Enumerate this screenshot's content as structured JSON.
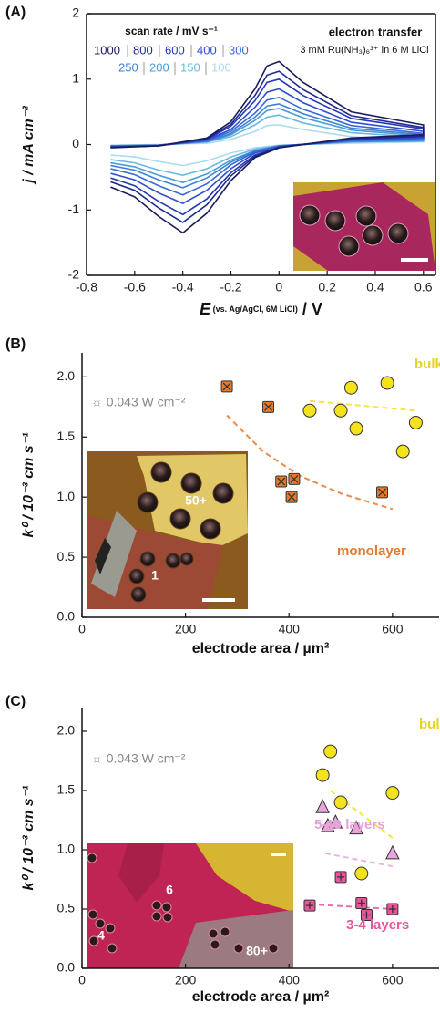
{
  "chart_data": [
    {
      "type": "line",
      "panel": "(A)",
      "ylabel": "j / mA cm⁻²",
      "xlabel": {
        "symbol": "E",
        "ref": " (vs. Ag/AgCl, 6M LiCl)",
        "unit": " / V"
      },
      "legend_title": "scan rate / mV s⁻¹",
      "title": "electron  transfer",
      "subtitle": "3 mM Ru(NH₃)₆³⁺ in 6 M LiCl",
      "frame": true,
      "x": [
        -0.7,
        -0.5,
        -0.3,
        -0.2,
        -0.1,
        -0.05,
        0,
        0.1,
        0.3,
        0.6,
        0.6,
        0.3,
        0,
        -0.1,
        -0.2,
        -0.3,
        -0.4,
        -0.5,
        -0.6,
        -0.7
      ],
      "series": [
        {
          "name": "1000",
          "color": "#1b1b5a",
          "values": [
            -0.05,
            -0.02,
            0.1,
            0.35,
            0.85,
            1.2,
            1.27,
            0.95,
            0.5,
            0.3,
            0.15,
            0.1,
            -0.05,
            -0.2,
            -0.55,
            -1.05,
            -1.35,
            -1.1,
            -0.8,
            -0.65
          ]
        },
        {
          "name": "800",
          "color": "#1f2a8f",
          "values": [
            -0.04,
            -0.02,
            0.09,
            0.31,
            0.75,
            1.06,
            1.12,
            0.84,
            0.44,
            0.26,
            0.13,
            0.09,
            -0.04,
            -0.18,
            -0.48,
            -0.92,
            -1.19,
            -0.97,
            -0.7,
            -0.57
          ]
        },
        {
          "name": "600",
          "color": "#2438b8",
          "values": [
            -0.04,
            -0.02,
            0.08,
            0.28,
            0.67,
            0.95,
            1.0,
            0.75,
            0.4,
            0.24,
            0.12,
            0.08,
            -0.04,
            -0.16,
            -0.43,
            -0.83,
            -1.07,
            -0.87,
            -0.63,
            -0.51
          ]
        },
        {
          "name": "400",
          "color": "#2f4fd0",
          "values": [
            -0.03,
            -0.01,
            0.07,
            0.23,
            0.57,
            0.8,
            0.85,
            0.64,
            0.34,
            0.2,
            0.1,
            0.07,
            -0.03,
            -0.13,
            -0.37,
            -0.7,
            -0.9,
            -0.74,
            -0.54,
            -0.44
          ]
        },
        {
          "name": "300",
          "color": "#3a6ad8",
          "values": [
            -0.03,
            -0.01,
            0.06,
            0.2,
            0.48,
            0.68,
            0.72,
            0.54,
            0.29,
            0.17,
            0.09,
            0.06,
            -0.03,
            -0.11,
            -0.31,
            -0.6,
            -0.77,
            -0.63,
            -0.46,
            -0.37
          ]
        },
        {
          "name": "250",
          "color": "#3b82d6",
          "values": [
            -0.02,
            -0.01,
            0.05,
            0.17,
            0.42,
            0.59,
            0.62,
            0.47,
            0.25,
            0.15,
            0.07,
            0.05,
            -0.02,
            -0.1,
            -0.27,
            -0.51,
            -0.66,
            -0.54,
            -0.39,
            -0.32
          ]
        },
        {
          "name": "200",
          "color": "#4a9ad8",
          "values": [
            -0.02,
            -0.01,
            0.04,
            0.15,
            0.37,
            0.52,
            0.55,
            0.41,
            0.22,
            0.13,
            0.06,
            0.04,
            -0.02,
            -0.09,
            -0.24,
            -0.45,
            -0.58,
            -0.47,
            -0.34,
            -0.28
          ]
        },
        {
          "name": "150",
          "color": "#6cb8e0",
          "values": [
            -0.02,
            -0.01,
            0.04,
            0.12,
            0.3,
            0.42,
            0.45,
            0.33,
            0.18,
            0.11,
            0.05,
            0.04,
            -0.02,
            -0.07,
            -0.19,
            -0.37,
            -0.47,
            -0.39,
            -0.28,
            -0.23
          ]
        },
        {
          "name": "100",
          "color": "#a8dcef",
          "values": [
            -0.01,
            0,
            0.02,
            0.08,
            0.2,
            0.29,
            0.3,
            0.23,
            0.12,
            0.07,
            0.04,
            0.02,
            -0.01,
            -0.05,
            -0.13,
            -0.25,
            -0.32,
            -0.26,
            -0.19,
            -0.16
          ]
        }
      ],
      "xlim": [
        -0.8,
        0.65
      ],
      "xticks": [
        -0.8,
        -0.6,
        -0.4,
        -0.2,
        0,
        0.2,
        0.4,
        0.6
      ],
      "ylim": [
        -2,
        2
      ],
      "yticks": [
        -2,
        -1,
        0,
        1,
        2
      ]
    },
    {
      "type": "scatter",
      "panel": "(B)",
      "ylabel": "k⁰ / 10⁻³ cm s⁻¹",
      "xlabel": "electrode area / µm²",
      "annotation": "☼ 0.043 W cm⁻²",
      "frame": false,
      "inset_labels": [
        "50+",
        "1"
      ],
      "series": [
        {
          "name": "bulk",
          "color": "#f3e21c",
          "marker": "circle",
          "x": [
            440,
            500,
            520,
            530,
            590,
            620,
            645
          ],
          "values": [
            1.72,
            1.72,
            1.91,
            1.57,
            1.95,
            1.38,
            1.62
          ],
          "fit": {
            "x": [
              440,
              645
            ],
            "values": [
              1.8,
              1.72
            ]
          }
        },
        {
          "name": "monolayer",
          "color": "#e8782a",
          "marker": "square-x",
          "x": [
            280,
            360,
            385,
            410,
            405,
            580
          ],
          "values": [
            1.92,
            1.75,
            1.13,
            1.15,
            1.0,
            1.04
          ],
          "fit": {
            "x": [
              280,
              350,
              420,
              500,
              600
            ],
            "values": [
              1.68,
              1.38,
              1.18,
              1.03,
              0.9
            ]
          }
        }
      ],
      "xlim": [
        0,
        690
      ],
      "xticks": [
        0,
        200,
        400,
        600
      ],
      "ylim": [
        0,
        2.2
      ],
      "yticks": [
        {
          "value": 0,
          "label": "0.0"
        },
        0.5,
        {
          "value": 1,
          "label": "1.0"
        },
        1.5,
        {
          "value": 2,
          "label": "2.0"
        }
      ]
    },
    {
      "type": "scatter",
      "panel": "(C)",
      "ylabel": "k⁰ / 10⁻³ cm s⁻¹",
      "xlabel": "electrode area / µm²",
      "annotation": "☼ 0.043 W cm⁻²",
      "frame": false,
      "inset_labels": [
        "6",
        "4",
        "80+"
      ],
      "series": [
        {
          "name": "bulk",
          "color": "#f3e21c",
          "marker": "circle",
          "x": [
            465,
            480,
            500,
            540,
            600
          ],
          "values": [
            1.63,
            1.83,
            1.4,
            0.8,
            1.48
          ],
          "fit": {
            "x": [
              480,
              600
            ],
            "values": [
              1.5,
              1.1
            ]
          }
        },
        {
          "name": "5-10 layers",
          "color": "#e8a6dc",
          "marker": "triangle",
          "x": [
            465,
            475,
            490,
            530,
            600
          ],
          "values": [
            1.36,
            1.2,
            1.23,
            1.18,
            0.97
          ],
          "fit": {
            "x": [
              470,
              600
            ],
            "values": [
              0.97,
              0.86
            ]
          }
        },
        {
          "name": "3-4 layers",
          "color": "#e8559b",
          "marker": "square-plus",
          "x": [
            440,
            500,
            540,
            550,
            600
          ],
          "values": [
            0.53,
            0.77,
            0.55,
            0.45,
            0.5
          ],
          "fit": {
            "x": [
              440,
              600
            ],
            "values": [
              0.54,
              0.5
            ]
          }
        }
      ],
      "xlim": [
        0,
        690
      ],
      "xticks": [
        0,
        200,
        400,
        600
      ],
      "ylim": [
        0,
        2.2
      ],
      "yticks": [
        {
          "value": 0,
          "label": "0.0"
        },
        0.5,
        {
          "value": 1,
          "label": "1.0"
        },
        1.5,
        {
          "value": 2,
          "label": "2.0"
        }
      ]
    }
  ]
}
